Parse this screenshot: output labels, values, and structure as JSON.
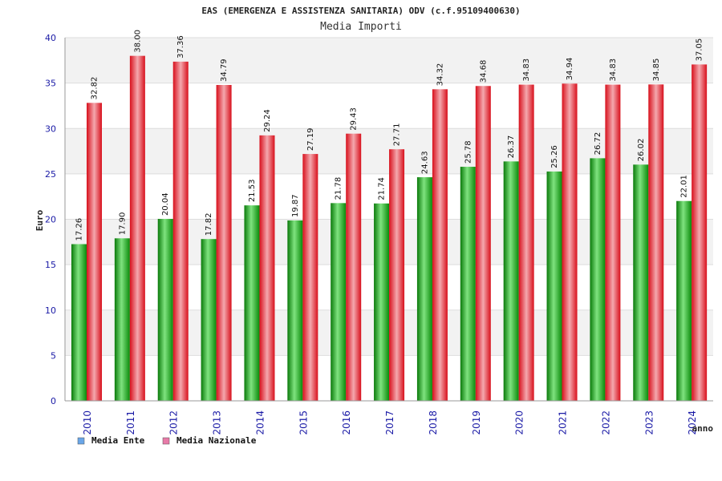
{
  "chart_data": {
    "type": "bar",
    "title": "EAS (EMERGENZA E ASSISTENZA SANITARIA) ODV (c.f.95109400630)",
    "subtitle": "Media Importi",
    "xlabel": "anno",
    "ylabel": "Euro",
    "ylim": [
      0,
      40
    ],
    "yticks": [
      0,
      5,
      10,
      15,
      20,
      25,
      30,
      35,
      40
    ],
    "grid": true,
    "legend_position": "bottom-left",
    "categories": [
      "2010",
      "2011",
      "2012",
      "2013",
      "2014",
      "2015",
      "2016",
      "2017",
      "2018",
      "2019",
      "2020",
      "2021",
      "2022",
      "2023",
      "2024"
    ],
    "series": [
      {
        "name": "Media Ente",
        "color": "#1e9e1e",
        "legend_color": "#6aa6e8",
        "values": [
          17.26,
          17.9,
          20.04,
          17.82,
          21.53,
          19.87,
          21.78,
          21.74,
          24.63,
          25.78,
          26.37,
          25.26,
          26.72,
          26.02,
          22.01
        ],
        "labels": [
          "17.26",
          "17.90",
          "20.04",
          "17.82",
          "21.53",
          "19.87",
          "21.78",
          "21.74",
          "24.63",
          "25.78",
          "26.37",
          "25.26",
          "26.72",
          "26.02",
          "22.01"
        ]
      },
      {
        "name": "Media Nazionale",
        "color": "#e8222e",
        "legend_color": "#e87aa8",
        "values": [
          32.82,
          38.0,
          37.36,
          34.79,
          29.24,
          27.19,
          29.43,
          27.71,
          34.32,
          34.68,
          34.83,
          34.94,
          34.83,
          34.85,
          37.05
        ],
        "labels": [
          "32.82",
          "38.00",
          "37.36",
          "34.79",
          "29.24",
          "27.19",
          "29.43",
          "27.71",
          "34.32",
          "34.68",
          "34.83",
          "34.94",
          "34.83",
          "34.85",
          "37.05"
        ]
      }
    ]
  }
}
